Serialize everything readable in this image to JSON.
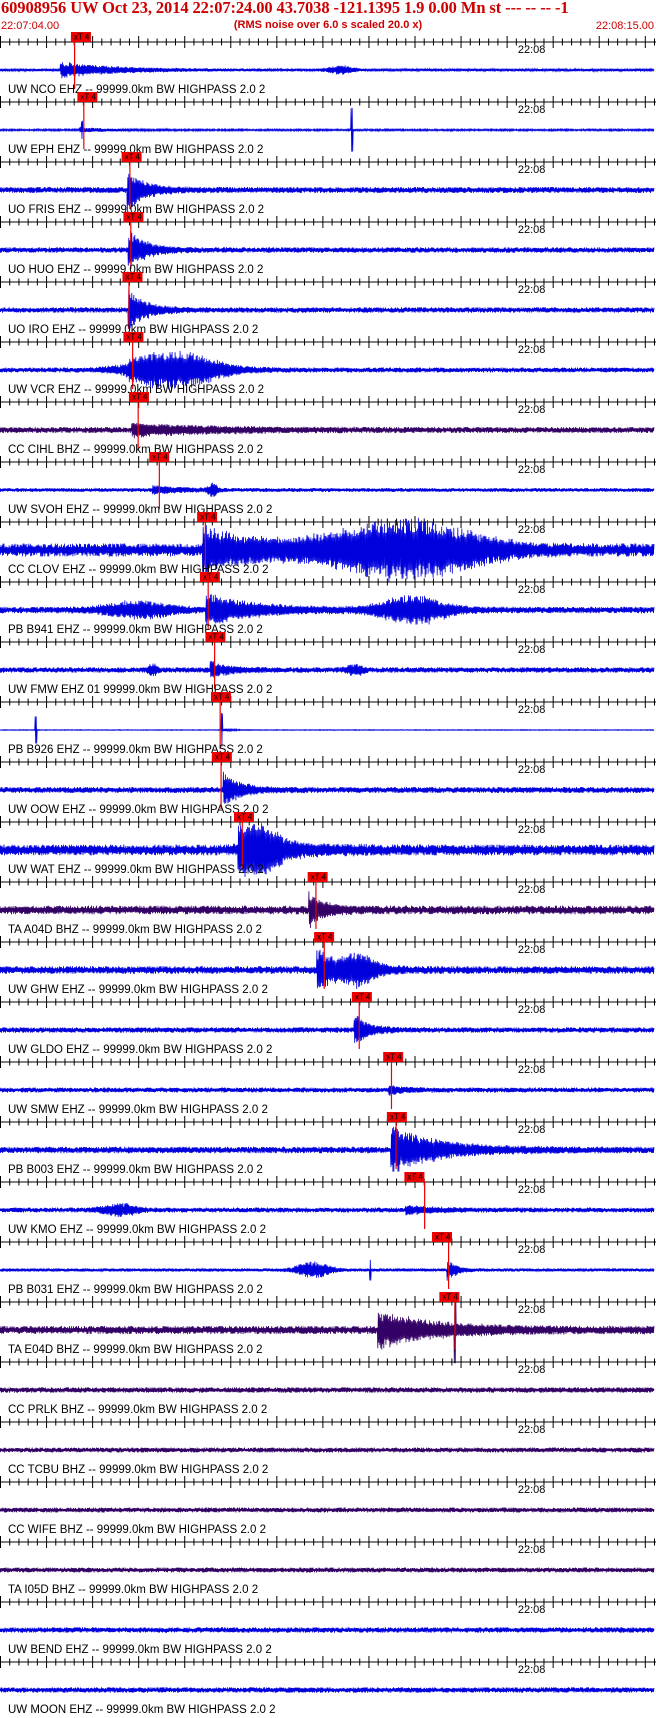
{
  "header": {
    "title": "60908956 UW Oct 23, 2014 22:07:24.00   43.7038 -121.1395  1.9 0.00 Mn st --- -- --   -1",
    "subtitle": "(RMS noise over 6.0 s scaled 20.0 x)",
    "start_time": "22:07:04.00",
    "end_time": "22:08:15.00"
  },
  "chart_data": {
    "type": "line",
    "title": "60908956 UW Oct 23, 2014 22:07:24.00   43.7038 -121.1395  1.9 0.00 Mn st --- -- --   -1",
    "xlim": [
      0,
      71
    ],
    "x_unit": "seconds after 22:07:04.00",
    "tick_label": "22:08",
    "tick_label_time_s": 56,
    "pick_label": "xT 4",
    "trace_colors": {
      "blue": "#0000dd",
      "purple": "#330066"
    },
    "pick_color": "#ee0000",
    "traces": [
      {
        "label": "UW NCO EHZ -- 99999.0km BW  HIGHPASS  2.0  2",
        "pick_time": 7.7,
        "line_time": 8.1,
        "color": "blue",
        "noise": 0.5,
        "arrival": 6.5,
        "arrival_amp": 4,
        "decay": 6,
        "bursts": [
          {
            "t": 37,
            "amp": 2,
            "w": 1.5
          }
        ]
      },
      {
        "label": "UW EPH EHZ -- 99999.0km BW  HIGHPASS  2.0  2",
        "pick_time": 8.4,
        "line_time": 9.1,
        "color": "blue",
        "noise": 0.35,
        "arrival": 8.6,
        "arrival_amp": 1.2,
        "decay": 3,
        "spikes": [
          {
            "t": 8.9,
            "amp": 3.5
          },
          {
            "t": 38.2,
            "amp": 11
          }
        ]
      },
      {
        "label": "UO FRIS EHZ -- 99999.0km BW  HIGHPASS  2.0  2",
        "pick_time": 13.2,
        "line_time": 14.1,
        "color": "blue",
        "noise": 1.1,
        "arrival": 13.8,
        "arrival_amp": 11,
        "decay": 1.8
      },
      {
        "label": "UO HUO EHZ -- 99999.0km BW  HIGHPASS  2.0  2",
        "pick_time": 13.4,
        "line_time": 14.2,
        "color": "blue",
        "noise": 1.0,
        "arrival": 13.9,
        "arrival_amp": 11,
        "decay": 1.8
      },
      {
        "label": "UO IRO EHZ -- 99999.0km BW  HIGHPASS  2.0  2",
        "pick_time": 13.3,
        "line_time": 14.0,
        "color": "blue",
        "noise": 1.0,
        "arrival": 13.9,
        "arrival_amp": 11,
        "decay": 1.8
      },
      {
        "label": "UW VCR EHZ -- 99999.0km BW  HIGHPASS  2.0  2",
        "pick_time": 13.4,
        "line_time": 14.4,
        "color": "blue",
        "noise": 0.9,
        "arrival": 14.0,
        "arrival_amp": 3,
        "decay": 6,
        "bursts": [
          {
            "t": 19,
            "amp": 9,
            "w": 5
          }
        ]
      },
      {
        "label": "CC CIHL BHZ -- 99999.0km BW  HIGHPASS  2.0  2",
        "pick_time": 14.0,
        "line_time": 15.0,
        "color": "purple",
        "noise": 1.1,
        "arrival": 14.3,
        "arrival_amp": 3,
        "decay": 8
      },
      {
        "label": "UW SVOH EHZ -- 99999.0km BW  HIGHPASS  2.0  2",
        "pick_time": 16.2,
        "line_time": 17.3,
        "color": "blue",
        "noise": 0.7,
        "arrival": 16.5,
        "arrival_amp": 2,
        "decay": 3,
        "bursts": [
          {
            "t": 23.1,
            "amp": 3,
            "w": 0.6
          }
        ]
      },
      {
        "label": "CC CLOV EHZ -- 99999.0km BW  HIGHPASS  2.0  2",
        "pick_time": 21.4,
        "line_time": 22.3,
        "color": "blue",
        "noise": 2.4,
        "arrival": 22.0,
        "arrival_amp": 11,
        "decay": 6,
        "bursts": [
          {
            "t": 44,
            "amp": 14,
            "w": 9
          }
        ]
      },
      {
        "label": "PB B941 EHZ -- 99999.0km BW  HIGHPASS  2.0  2",
        "pick_time": 21.7,
        "line_time": 22.6,
        "color": "blue",
        "noise": 1.2,
        "arrival": 22.3,
        "arrival_amp": 8,
        "decay": 5,
        "bursts": [
          {
            "t": 15,
            "amp": 4,
            "w": 4
          },
          {
            "t": 45,
            "amp": 7,
            "w": 4
          }
        ]
      },
      {
        "label": "UW FMW EHZ 01 99999.0km BW  HIGHPASS  2.0  2",
        "pick_time": 22.3,
        "line_time": 23.3,
        "color": "blue",
        "noise": 1.0,
        "arrival": 22.8,
        "arrival_amp": 4,
        "decay": 2,
        "bursts": [
          {
            "t": 16.6,
            "amp": 3,
            "w": 0.5
          },
          {
            "t": 38.5,
            "amp": 2.5,
            "w": 1
          }
        ]
      },
      {
        "label": "PB B926 EHZ -- 99999.0km BW  HIGHPASS  2.0  2",
        "pick_time": 22.9,
        "line_time": 23.9,
        "color": "blue",
        "noise": 0.15,
        "arrival": 24.0,
        "arrival_amp": 1,
        "decay": 1,
        "spikes": [
          {
            "t": 3.9,
            "amp": 7
          },
          {
            "t": 24.1,
            "amp": 8
          }
        ]
      },
      {
        "label": "UW OOW EHZ -- 99999.0km BW  HIGHPASS  2.0  2",
        "pick_time": 23.0,
        "line_time": 24.0,
        "color": "blue",
        "noise": 1.1,
        "arrival": 24.2,
        "arrival_amp": 9,
        "decay": 1.8
      },
      {
        "label": "UW WAT EHZ -- 99999.0km BW  HIGHPASS  2.0  2",
        "pick_time": 25.4,
        "line_time": 26.3,
        "color": "blue",
        "noise": 2.0,
        "arrival": 25.8,
        "arrival_amp": 11,
        "decay": 4,
        "bursts": [
          {
            "t": 28.5,
            "amp": 8,
            "w": 2
          }
        ]
      },
      {
        "label": "TA A04D BHZ -- 99999.0km BW  HIGHPASS  2.0  2",
        "pick_time": 33.4,
        "line_time": 34.3,
        "color": "purple",
        "noise": 1.6,
        "arrival": 33.5,
        "arrival_amp": 9,
        "decay": 1.5
      },
      {
        "label": "UW GHW EHZ -- 99999.0km BW  HIGHPASS  2.0  2",
        "pick_time": 34.1,
        "line_time": 35.2,
        "color": "blue",
        "noise": 1.4,
        "arrival": 34.4,
        "arrival_amp": 10,
        "decay": 3,
        "bursts": [
          {
            "t": 39,
            "amp": 6,
            "w": 2
          }
        ]
      },
      {
        "label": "UW GLDO EHZ -- 99999.0km BW  HIGHPASS  2.0  2",
        "pick_time": 38.2,
        "line_time": 39.0,
        "color": "blue",
        "noise": 1.0,
        "arrival": 38.4,
        "arrival_amp": 8,
        "decay": 1.5
      },
      {
        "label": "UW SMW EHZ -- 99999.0km BW  HIGHPASS  2.0  2",
        "pick_time": 41.6,
        "line_time": 42.5,
        "color": "blue",
        "noise": 0.9,
        "arrival": 42.2,
        "arrival_amp": 2,
        "decay": 2
      },
      {
        "label": "PB B003 EHZ -- 99999.0km BW  HIGHPASS  2.0  2",
        "pick_time": 42.0,
        "line_time": 43.0,
        "color": "blue",
        "noise": 1.2,
        "arrival": 42.4,
        "arrival_amp": 12,
        "decay": 5
      },
      {
        "label": "UW KMO EHZ -- 99999.0km BW  HIGHPASS  2.0  2",
        "pick_time": 43.9,
        "line_time": 46.1,
        "color": "blue",
        "noise": 0.9,
        "arrival": 44.0,
        "arrival_amp": 2,
        "decay": 3,
        "bursts": [
          {
            "t": 13,
            "amp": 3,
            "w": 2
          }
        ]
      },
      {
        "label": "PB B031 EHZ -- 99999.0km BW  HIGHPASS  2.0  2",
        "pick_time": 46.9,
        "line_time": 48.7,
        "color": "blue",
        "noise": 0.6,
        "arrival": 48.5,
        "arrival_amp": 6,
        "decay": 1,
        "bursts": [
          {
            "t": 34,
            "amp": 4,
            "w": 2
          }
        ],
        "spikes": [
          {
            "t": 40.2,
            "amp": 5
          }
        ]
      },
      {
        "label": "TA E04D BHZ -- 99999.0km BW  HIGHPASS  2.0  2",
        "pick_time": 47.7,
        "line_time": 49.4,
        "color": "purple",
        "noise": 1.5,
        "arrival": 41.0,
        "arrival_amp": 9,
        "decay": 6,
        "spikes": [
          {
            "t": 49.4,
            "amp": 14
          }
        ]
      },
      {
        "label": "CC PRLK BHZ -- 99999.0km BW  HIGHPASS  2.0  2",
        "color": "purple",
        "noise": 1.0
      },
      {
        "label": "CC TCBU BHZ -- 99999.0km BW  HIGHPASS  2.0  2",
        "color": "purple",
        "noise": 0.9
      },
      {
        "label": "CC WIFE BHZ -- 99999.0km BW  HIGHPASS  2.0  2",
        "color": "purple",
        "noise": 0.9
      },
      {
        "label": "TA I05D BHZ -- 99999.0km BW  HIGHPASS  2.0  2",
        "color": "purple",
        "noise": 0.9
      },
      {
        "label": "UW BEND EHZ -- 99999.0km BW  HIGHPASS  2.0  2",
        "color": "blue",
        "noise": 1.0
      },
      {
        "label": "UW MOON EHZ -- 99999.0km BW  HIGHPASS  2.0  2",
        "color": "blue",
        "noise": 1.0
      }
    ]
  }
}
